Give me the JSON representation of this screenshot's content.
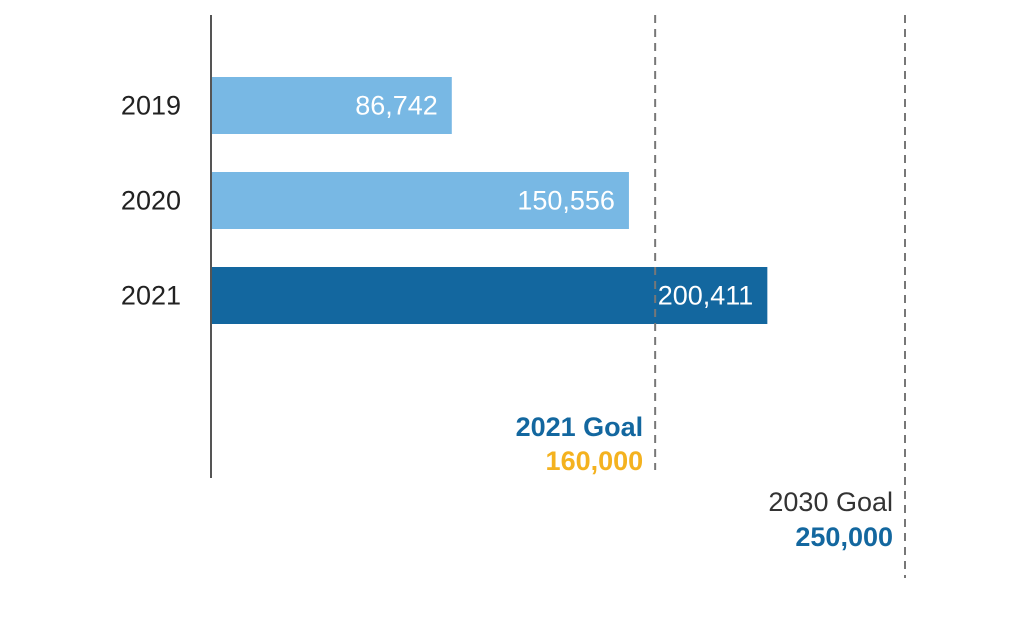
{
  "chart_data": {
    "type": "bar",
    "orientation": "horizontal",
    "categories": [
      "2019",
      "2020",
      "2021"
    ],
    "values": [
      86742,
      150556,
      200411
    ],
    "value_labels": [
      "86,742",
      "150,556",
      "200,411"
    ],
    "bar_colors": [
      "#78b8e4",
      "#78b8e4",
      "#13679f"
    ],
    "xlim": [
      0,
      250000
    ],
    "grid": false,
    "reference_lines": [
      {
        "value": 160000,
        "style": "dashed",
        "label": "2021 Goal",
        "value_label": "160,000",
        "label_color": "#13679f",
        "value_color": "#f4b21f"
      },
      {
        "value": 250000,
        "style": "dashed",
        "label": "2030 Goal",
        "value_label": "250,000",
        "label_color": "#333333",
        "value_color": "#13679f"
      }
    ],
    "colors": {
      "axis": "#555555",
      "bar_text": "#ffffff",
      "category_text": "#222222",
      "goal_line": "#777777"
    }
  }
}
